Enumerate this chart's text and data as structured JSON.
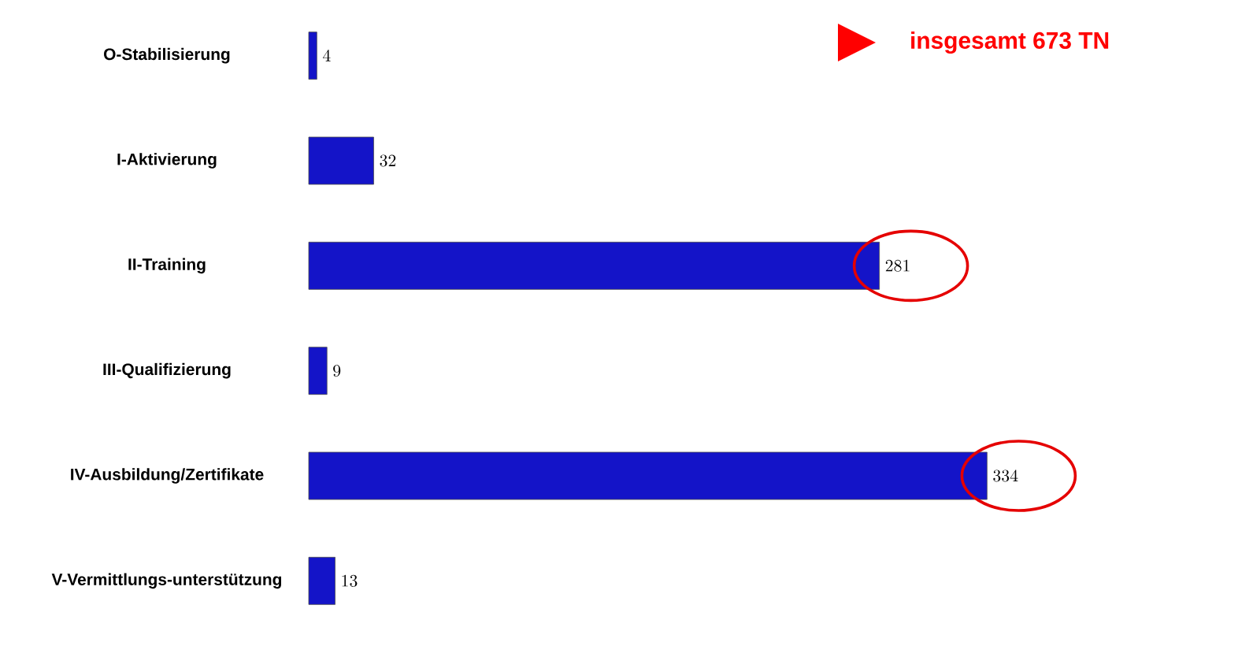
{
  "chart_data": {
    "type": "bar",
    "orientation": "horizontal",
    "categories": [
      "O-Stabilisierung",
      "I-Aktivierung",
      "II-Training",
      "III-Qualifizierung",
      "IV-Ausbildung/Zertifikate",
      "V-Vermittlungs-unterstützung"
    ],
    "values": [
      4,
      32,
      281,
      9,
      334,
      13
    ],
    "color": "#1414c8",
    "data_labels": true,
    "annotations": [
      "insgesamt 673 TN"
    ]
  }
}
